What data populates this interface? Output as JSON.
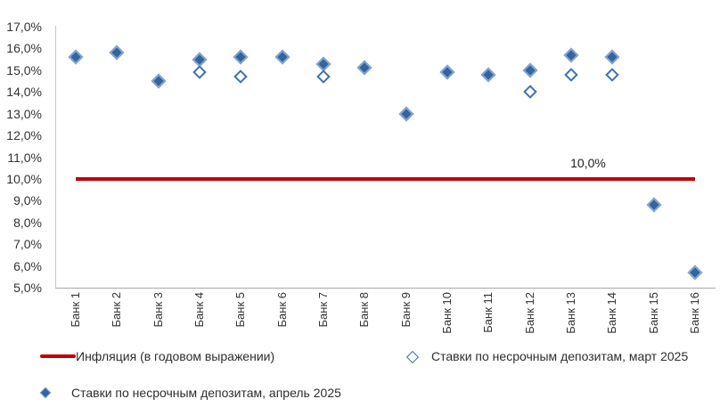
{
  "chart_data": {
    "type": "scatter",
    "title": "",
    "categories": [
      "Банк 1",
      "Банк 2",
      "Банк 3",
      "Банк 4",
      "Банк 5",
      "Банк 6",
      "Банк 7",
      "Банк 8",
      "Банк 9",
      "Банк 10",
      "Банк 11",
      "Банк 12",
      "Банк 13",
      "Банк 14",
      "Банк 15",
      "Банк 16"
    ],
    "series": [
      {
        "name": "Ставки по несрочным депозитам, апрель 2025",
        "type": "scatter",
        "marker": "filled-diamond",
        "color": "#36629F",
        "values": [
          15.6,
          15.8,
          14.5,
          15.5,
          15.6,
          15.6,
          15.3,
          15.1,
          13.0,
          14.9,
          14.8,
          15.0,
          15.7,
          15.6,
          8.8,
          5.7
        ]
      },
      {
        "name": "Ставки по несрочным депозитам, март 2025",
        "type": "scatter",
        "marker": "hollow-diamond",
        "color": "#3F6FB5",
        "values": [
          null,
          null,
          null,
          14.9,
          14.7,
          null,
          14.7,
          null,
          null,
          null,
          null,
          14.0,
          14.8,
          14.8,
          null,
          null
        ]
      },
      {
        "name": "Инфляция (в годовом выражении)",
        "type": "line",
        "color": "#C00000",
        "values": [
          10.0,
          10.0,
          10.0,
          10.0,
          10.0,
          10.0,
          10.0,
          10.0,
          10.0,
          10.0,
          10.0,
          10.0,
          10.0,
          10.0,
          10.0,
          10.0
        ]
      }
    ],
    "annotation": {
      "text": "10,0%",
      "value": 10.0
    },
    "y_axis": {
      "min": 5.0,
      "max": 17.0,
      "step": 1.0,
      "tick_labels": [
        "17,0%",
        "16,0%",
        "15,0%",
        "14,0%",
        "13,0%",
        "12,0%",
        "11,0%",
        "10,0%",
        "9,0%",
        "8,0%",
        "7,0%",
        "6,0%",
        "5,0%"
      ]
    },
    "x_axis": {
      "label_rotation": -90
    },
    "grid": false,
    "legend_position": "bottom"
  }
}
